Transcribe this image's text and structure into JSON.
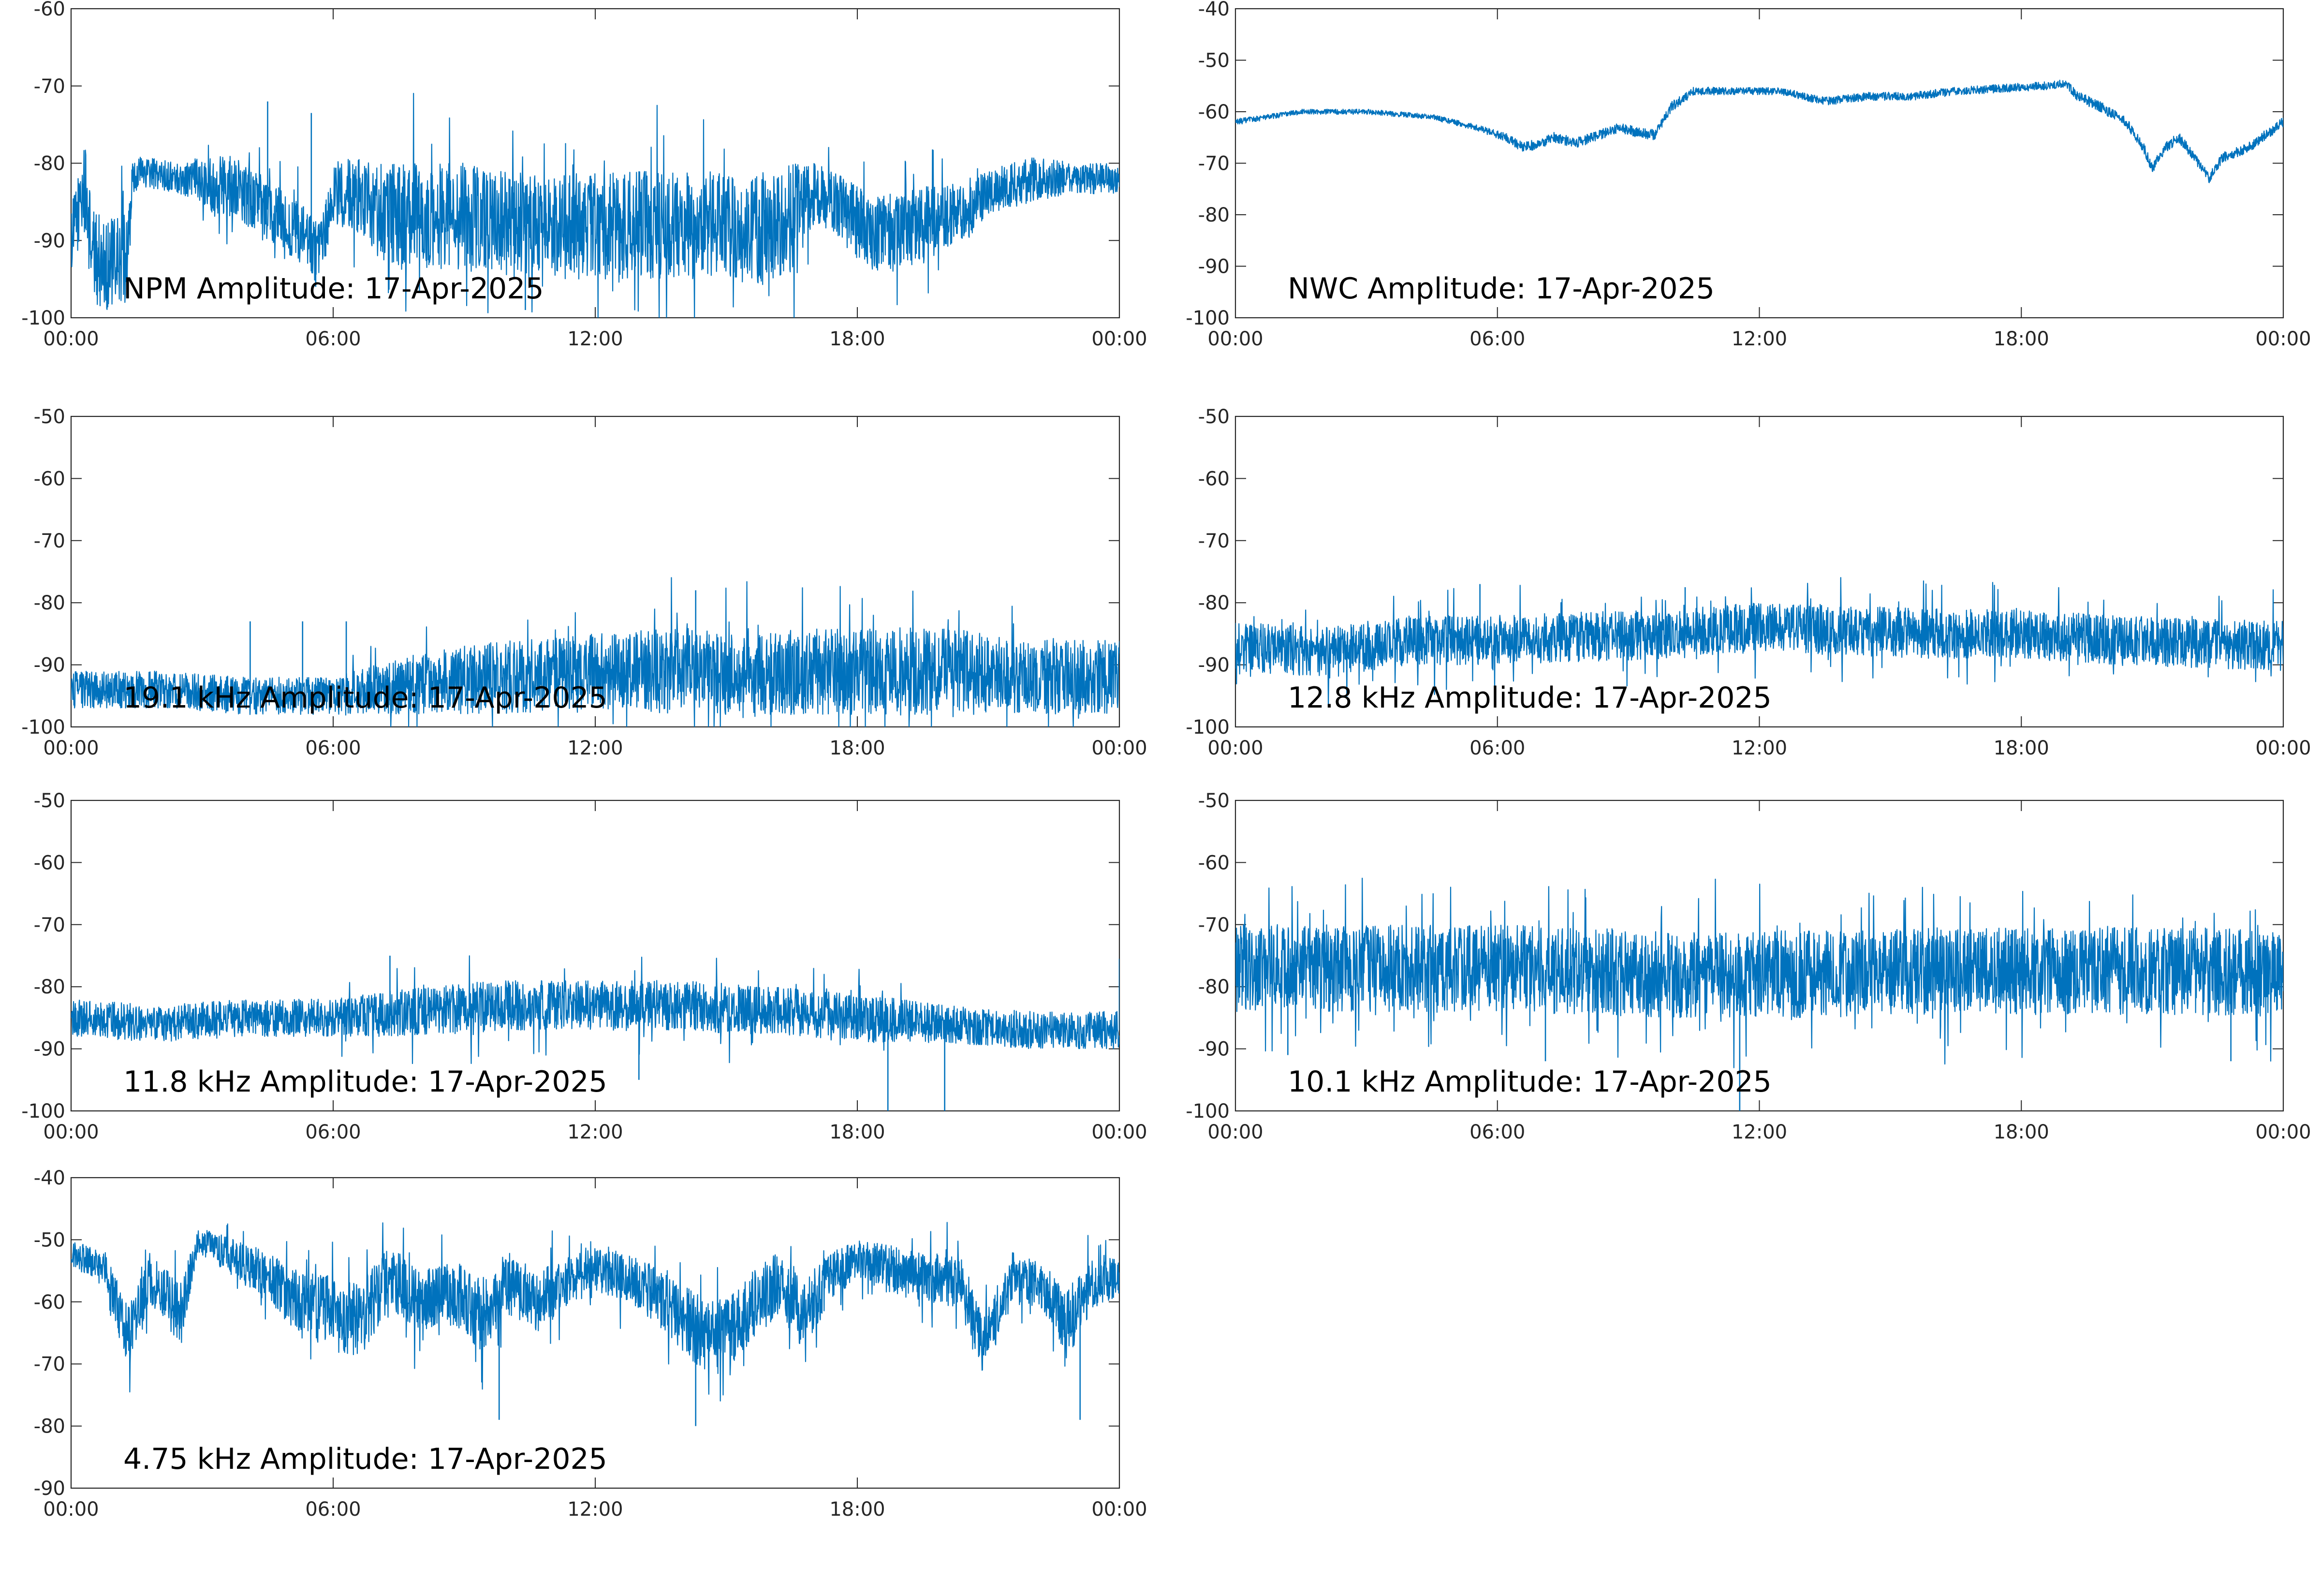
{
  "figure": {
    "line_color": "#0072BD",
    "axis_color": "#262626",
    "background": "#ffffff"
  },
  "chart_data": [
    {
      "type": "line",
      "title": "NPM Amplitude: 17-Apr-2025",
      "xlabel": "",
      "ylabel": "",
      "xlim": [
        0,
        24
      ],
      "ylim": [
        -100,
        -60
      ],
      "yticks": [
        -100,
        -90,
        -80,
        -70,
        -60
      ],
      "ytick_labels": [
        "-100",
        "-90",
        "-80",
        "-70",
        "-60"
      ],
      "xticks": [
        0,
        6,
        12,
        18,
        24
      ],
      "xtick_labels": [
        "00:00",
        "06:00",
        "12:00",
        "18:00",
        "00:00"
      ],
      "grid": false,
      "series": [
        {
          "x": [
            0,
            0.3,
            0.5,
            0.8,
            1.0,
            1.3,
            1.4,
            1.6,
            2.0,
            2.5,
            3.0,
            3.3,
            3.6,
            4.0,
            4.5,
            5.0,
            5.4,
            5.7,
            6.0,
            6.5,
            7.0,
            7.5,
            8.0,
            9.0,
            10.0,
            11.0,
            12.0,
            13.0,
            14.0,
            15.0,
            16.0,
            16.5,
            17.0,
            17.5,
            18.0,
            18.5,
            19.0,
            19.5,
            20.0,
            20.5,
            21.0,
            22.0,
            23.0,
            24.0
          ],
          "y": [
            -90,
            -83,
            -92,
            -93,
            -93,
            -92,
            -82,
            -81,
            -81.5,
            -82,
            -82,
            -83,
            -82,
            -84,
            -86,
            -88,
            -90,
            -92,
            -84,
            -84,
            -86,
            -87,
            -87,
            -87,
            -88,
            -88,
            -88,
            -88,
            -88,
            -88,
            -89,
            -87,
            -84,
            -85,
            -88,
            -89,
            -89,
            -88,
            -87,
            -86,
            -84,
            -82,
            -82,
            -82
          ],
          "band": [
            4,
            6,
            6,
            6,
            6,
            6,
            2,
            2,
            2,
            2,
            3,
            4,
            4,
            4,
            4,
            4,
            4,
            4,
            4,
            5,
            6,
            7,
            7,
            7,
            7,
            7,
            7,
            7,
            7,
            7,
            7,
            7,
            4,
            4,
            5,
            5,
            5,
            5,
            4,
            4,
            3,
            3,
            2,
            2
          ],
          "spikes": [
            [
              4.5,
              -72
            ],
            [
              5.5,
              -73.5
            ],
            [
              5.6,
              -96
            ],
            [
              10.4,
              -99
            ]
          ]
        }
      ]
    },
    {
      "type": "line",
      "title": "NWC Amplitude: 17-Apr-2025",
      "xlabel": "",
      "ylabel": "",
      "xlim": [
        0,
        24
      ],
      "ylim": [
        -100,
        -40
      ],
      "yticks": [
        -100,
        -90,
        -80,
        -70,
        -60,
        -50,
        -40
      ],
      "ytick_labels": [
        "-100",
        "-90",
        "-80",
        "-70",
        "-60",
        "-50",
        "-40"
      ],
      "xticks": [
        0,
        6,
        12,
        18,
        24
      ],
      "xtick_labels": [
        "00:00",
        "06:00",
        "12:00",
        "18:00",
        "00:00"
      ],
      "grid": false,
      "series": [
        {
          "x": [
            0,
            1.5,
            3.0,
            4.5,
            5.5,
            6.2,
            6.6,
            7.0,
            7.3,
            7.8,
            8.2,
            8.8,
            9.2,
            9.6,
            10.0,
            10.5,
            11.5,
            12.5,
            13.5,
            14.5,
            15.5,
            16.5,
            17.5,
            18.5,
            19.0,
            19.3,
            19.8,
            20.4,
            20.8,
            21.0,
            21.3,
            21.6,
            21.9,
            22.3,
            22.6,
            23.2,
            24.0
          ],
          "y": [
            -62,
            -60,
            -60,
            -61,
            -63,
            -65,
            -67,
            -66,
            -65,
            -66,
            -65,
            -63,
            -64,
            -64.5,
            -59,
            -56,
            -56,
            -56,
            -58,
            -57,
            -57,
            -56,
            -55.5,
            -55,
            -54.5,
            -57,
            -59,
            -62,
            -67,
            -71,
            -67,
            -65,
            -68,
            -73,
            -69,
            -67,
            -62
          ],
          "band": [
            0.6,
            0.5,
            0.5,
            0.5,
            0.6,
            0.8,
            1,
            1,
            1,
            1,
            1,
            1,
            1,
            1,
            1,
            0.8,
            0.7,
            0.7,
            0.8,
            0.8,
            0.8,
            0.8,
            0.8,
            0.8,
            0.8,
            1,
            1,
            1,
            1,
            1,
            1,
            1,
            1,
            1,
            1,
            1,
            1
          ],
          "spikes": []
        }
      ]
    },
    {
      "type": "line",
      "title": "19.1 kHz Amplitude: 17-Apr-2025",
      "xlabel": "",
      "ylabel": "",
      "xlim": [
        0,
        24
      ],
      "ylim": [
        -100,
        -50
      ],
      "yticks": [
        -100,
        -90,
        -80,
        -70,
        -60,
        -50
      ],
      "ytick_labels": [
        "-100",
        "-90",
        "-80",
        "-70",
        "-60",
        "-50"
      ],
      "xticks": [
        0,
        6,
        12,
        18,
        24
      ],
      "xtick_labels": [
        "00:00",
        "06:00",
        "12:00",
        "18:00",
        "00:00"
      ],
      "grid": false,
      "series": [
        {
          "x": [
            0,
            2,
            4,
            6,
            7,
            8,
            10,
            12,
            14,
            16,
            18,
            20,
            22,
            24
          ],
          "y": [
            -94,
            -94,
            -95,
            -95,
            -94,
            -93,
            -92,
            -91,
            -91,
            -91,
            -91,
            -91,
            -92,
            -92
          ],
          "band": [
            3,
            3,
            3,
            3,
            4,
            5,
            6,
            6,
            7,
            7,
            7,
            7,
            6,
            6
          ],
          "spikes": [
            [
              4.1,
              -83
            ],
            [
              5.3,
              -83
            ],
            [
              6.3,
              -83
            ],
            [
              14.3,
              -78
            ]
          ]
        }
      ]
    },
    {
      "type": "line",
      "title": "12.8 kHz Amplitude: 17-Apr-2025",
      "xlabel": "",
      "ylabel": "",
      "xlim": [
        0,
        24
      ],
      "ylim": [
        -100,
        -50
      ],
      "yticks": [
        -100,
        -90,
        -80,
        -70,
        -60,
        -50
      ],
      "ytick_labels": [
        "-100",
        "-90",
        "-80",
        "-70",
        "-60",
        "-50"
      ],
      "xticks": [
        0,
        6,
        12,
        18,
        24
      ],
      "xtick_labels": [
        "00:00",
        "06:00",
        "12:00",
        "18:00",
        "00:00"
      ],
      "grid": false,
      "series": [
        {
          "x": [
            0,
            2,
            4,
            6,
            8,
            10,
            12,
            14,
            16,
            18,
            20,
            22,
            24
          ],
          "y": [
            -87,
            -88,
            -86,
            -86,
            -85.5,
            -85,
            -84,
            -84.5,
            -85,
            -85,
            -86,
            -86.5,
            -87
          ],
          "band": [
            4,
            4,
            4,
            4,
            4,
            4,
            4,
            4,
            4,
            4,
            4,
            4,
            4
          ],
          "spikes": [
            [
              5.6,
              -77
            ],
            [
              10.3,
              -77.5
            ]
          ]
        }
      ]
    },
    {
      "type": "line",
      "title": "11.8 kHz Amplitude: 17-Apr-2025",
      "xlabel": "",
      "ylabel": "",
      "xlim": [
        0,
        24
      ],
      "ylim": [
        -100,
        -50
      ],
      "yticks": [
        -100,
        -90,
        -80,
        -70,
        -60,
        -50
      ],
      "ytick_labels": [
        "-100",
        "-90",
        "-80",
        "-70",
        "-60",
        "-50"
      ],
      "xticks": [
        0,
        6,
        12,
        18,
        24
      ],
      "xtick_labels": [
        "00:00",
        "06:00",
        "12:00",
        "18:00",
        "00:00"
      ],
      "grid": false,
      "series": [
        {
          "x": [
            0,
            2,
            4,
            6,
            8,
            10,
            12,
            14,
            16,
            18,
            20,
            22,
            24
          ],
          "y": [
            -85,
            -86,
            -85,
            -85,
            -84,
            -83,
            -83,
            -83,
            -84,
            -85,
            -86,
            -87,
            -87
          ],
          "band": [
            3,
            3,
            3,
            3,
            4,
            4,
            4,
            4,
            4,
            4,
            3,
            3,
            3
          ],
          "spikes": [
            [
              7.3,
              -75
            ],
            [
              13.0,
              -95
            ],
            [
              18.7,
              -100
            ],
            [
              20.0,
              -100
            ],
            [
              24.0,
              -75.5
            ]
          ]
        }
      ]
    },
    {
      "type": "line",
      "title": "10.1 kHz Amplitude: 17-Apr-2025",
      "xlabel": "",
      "ylabel": "",
      "xlim": [
        0,
        24
      ],
      "ylim": [
        -100,
        -50
      ],
      "yticks": [
        -100,
        -90,
        -80,
        -70,
        -60,
        -50
      ],
      "ytick_labels": [
        "-100",
        "-90",
        "-80",
        "-70",
        "-60",
        "-50"
      ],
      "xticks": [
        0,
        6,
        12,
        18,
        24
      ],
      "xtick_labels": [
        "00:00",
        "06:00",
        "12:00",
        "18:00",
        "00:00"
      ],
      "grid": false,
      "series": [
        {
          "x": [
            0,
            2,
            4,
            6,
            8,
            10,
            12,
            14,
            16,
            18,
            20,
            22,
            24
          ],
          "y": [
            -77,
            -77,
            -77,
            -77,
            -77.5,
            -78,
            -78,
            -78,
            -77.5,
            -77.5,
            -77.5,
            -77.5,
            -78
          ],
          "band": [
            7,
            7,
            7,
            7,
            7,
            7,
            7,
            7,
            7,
            7,
            7,
            7,
            7
          ],
          "spikes": [
            [
              1.2,
              -91
            ],
            [
              7.1,
              -92
            ],
            [
              11.55,
              -100
            ],
            [
              22.8,
              -92
            ]
          ]
        }
      ]
    },
    {
      "type": "line",
      "title": "4.75 kHz Amplitude: 17-Apr-2025",
      "xlabel": "",
      "ylabel": "",
      "xlim": [
        0,
        24
      ],
      "ylim": [
        -90,
        -40
      ],
      "yticks": [
        -90,
        -80,
        -70,
        -60,
        -50,
        -40
      ],
      "ytick_labels": [
        "-90",
        "-80",
        "-70",
        "-60",
        "-50",
        "-40"
      ],
      "xticks": [
        0,
        6,
        12,
        18,
        24
      ],
      "xtick_labels": [
        "00:00",
        "06:00",
        "12:00",
        "18:00",
        "00:00"
      ],
      "grid": false,
      "series": [
        {
          "x": [
            0,
            0.8,
            1.3,
            1.8,
            2.5,
            2.9,
            3.5,
            4.5,
            5.2,
            6.0,
            6.6,
            7.3,
            8.0,
            8.7,
            9.4,
            10.0,
            10.7,
            11.5,
            12.3,
            13.0,
            13.6,
            14.2,
            14.8,
            15.4,
            16.2,
            16.8,
            17.4,
            18.0,
            18.8,
            19.6,
            20.4,
            20.9,
            21.5,
            22.2,
            22.8,
            23.4,
            24.0
          ],
          "y": [
            -52,
            -55,
            -66,
            -56,
            -62,
            -50,
            -52,
            -56,
            -60,
            -62,
            -63,
            -56,
            -60,
            -58,
            -62,
            -57,
            -60,
            -56,
            -55,
            -57,
            -60,
            -64,
            -66,
            -62,
            -57,
            -62,
            -56,
            -53,
            -55,
            -56,
            -57,
            -67,
            -57,
            -57,
            -64,
            -57,
            -56
          ],
          "band": [
            2,
            3,
            5,
            4,
            5,
            2,
            3,
            4,
            5,
            6,
            6,
            5,
            5,
            5,
            6,
            5,
            5,
            4,
            4,
            4,
            5,
            6,
            6,
            6,
            5,
            6,
            4,
            3,
            4,
            4,
            4,
            5,
            4,
            4,
            6,
            4,
            3
          ],
          "spikes": [
            [
              9.8,
              -79
            ],
            [
              14.3,
              -80
            ],
            [
              23.1,
              -79
            ]
          ]
        }
      ]
    }
  ]
}
